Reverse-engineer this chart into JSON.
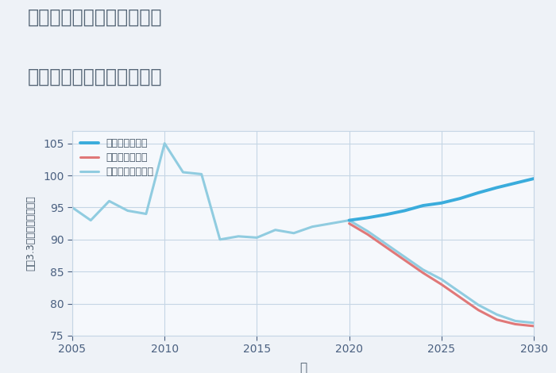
{
  "title_line1": "千葉県野田市関宿江戸町の",
  "title_line2": "中古マンションの価格推移",
  "xlabel": "年",
  "ylabel": "坪（3.3㎡）単価（万円）",
  "bg_color": "#eef2f7",
  "plot_bg_color": "#f5f8fc",
  "grid_color": "#c5d5e5",
  "title_color": "#556677",
  "axis_color": "#445566",
  "tick_color": "#4a6080",
  "ylim": [
    75,
    107
  ],
  "xlim": [
    2005,
    2030
  ],
  "yticks": [
    75,
    80,
    85,
    90,
    95,
    100,
    105
  ],
  "xticks": [
    2005,
    2010,
    2015,
    2020,
    2025,
    2030
  ],
  "good_scenario": {
    "label": "グッドシナリオ",
    "color": "#3aacdc",
    "linewidth": 2.8,
    "x": [
      2020,
      2021,
      2022,
      2023,
      2024,
      2025,
      2026,
      2027,
      2028,
      2029,
      2030
    ],
    "y": [
      93.0,
      93.4,
      93.9,
      94.5,
      95.3,
      95.7,
      96.4,
      97.3,
      98.1,
      98.8,
      99.5
    ]
  },
  "bad_scenario": {
    "label": "バッドシナリオ",
    "color": "#e07878",
    "linewidth": 2.2,
    "x": [
      2020,
      2021,
      2022,
      2023,
      2024,
      2025,
      2026,
      2027,
      2028,
      2029,
      2030
    ],
    "y": [
      92.5,
      90.8,
      88.8,
      86.8,
      84.8,
      83.0,
      81.0,
      79.0,
      77.5,
      76.8,
      76.5
    ]
  },
  "normal_scenario": {
    "label": "ノーマルシナリオ",
    "color": "#90cce0",
    "linewidth": 2.2,
    "x_hist": [
      2005,
      2006,
      2007,
      2008,
      2009,
      2010,
      2011,
      2012,
      2013,
      2014,
      2015,
      2016,
      2017,
      2018,
      2019,
      2020
    ],
    "y_hist": [
      95.0,
      93.0,
      96.0,
      94.5,
      94.0,
      105.0,
      100.5,
      100.2,
      90.0,
      90.5,
      90.3,
      91.5,
      91.0,
      92.0,
      92.5,
      93.0
    ],
    "x_future": [
      2020,
      2021,
      2022,
      2023,
      2024,
      2025,
      2026,
      2027,
      2028,
      2029,
      2030
    ],
    "y_future": [
      93.0,
      91.3,
      89.3,
      87.3,
      85.3,
      83.8,
      81.8,
      79.8,
      78.3,
      77.3,
      77.0
    ]
  }
}
